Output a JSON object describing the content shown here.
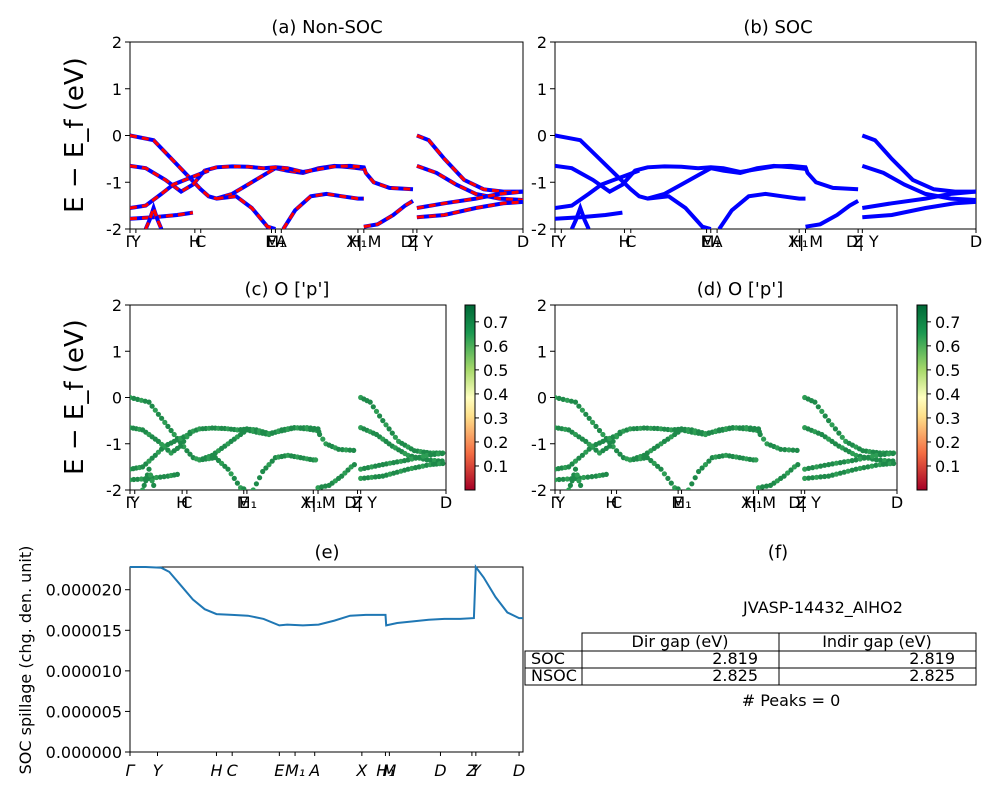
{
  "figure": {
    "id_label": "JVASP-14432_AlHO2"
  },
  "chart_data": [
    {
      "panel": "a",
      "type": "line",
      "title": "(a) Non-SOC",
      "ylabel": "E − E_f (eV)",
      "ylim": [
        -2,
        2
      ],
      "yticks": [
        -2,
        -1,
        0,
        1,
        2
      ],
      "xlim": [
        0,
        100
      ],
      "kpoint_ticks": [
        {
          "x": 0,
          "label": "Γ"
        },
        {
          "x": 1.5,
          "label": "Y"
        },
        {
          "x": 16.5,
          "label": "H"
        },
        {
          "x": 18,
          "label": "C"
        },
        {
          "x": 36,
          "label": "E"
        },
        {
          "x": 37,
          "label": "M₁"
        },
        {
          "x": 38.5,
          "label": "A"
        },
        {
          "x": 58,
          "label": "H₁"
        },
        {
          "x": 59.5,
          "label": "X| M"
        },
        {
          "x": 72,
          "label": "Z"
        },
        {
          "x": 73,
          "label": "D| Y"
        },
        {
          "x": 100,
          "label": "D"
        }
      ],
      "series": [
        {
          "color": "#0000ff",
          "points": [
            [
              0,
              0
            ],
            [
              6,
              -0.1
            ],
            [
              10,
              -0.45
            ],
            [
              14,
              -0.8
            ],
            [
              18,
              -1.15
            ],
            [
              20,
              -1.3
            ],
            [
              22,
              -1.35
            ],
            [
              26,
              -1.25
            ],
            [
              30,
              -1.05
            ],
            [
              34,
              -0.85
            ],
            [
              37,
              -0.7
            ],
            [
              40,
              -0.75
            ],
            [
              44,
              -0.8
            ],
            [
              48,
              -0.7
            ],
            [
              52,
              -0.65
            ],
            [
              56,
              -0.68
            ],
            [
              60,
              -0.72
            ]
          ]
        },
        {
          "color": "#0000ff",
          "points": [
            [
              0,
              -0.65
            ],
            [
              4,
              -0.7
            ],
            [
              9,
              -0.95
            ],
            [
              13,
              -1.2
            ],
            [
              16,
              -1.05
            ],
            [
              19,
              -0.75
            ],
            [
              22,
              -0.68
            ],
            [
              26,
              -0.66
            ],
            [
              30,
              -0.67
            ],
            [
              34,
              -0.7
            ],
            [
              37,
              -0.68
            ],
            [
              40,
              -0.7
            ],
            [
              44,
              -0.78
            ],
            [
              48,
              -0.72
            ],
            [
              52,
              -0.66
            ],
            [
              56,
              -0.65
            ],
            [
              59.5,
              -0.68
            ],
            [
              60,
              -0.8
            ],
            [
              62,
              -1.0
            ],
            [
              66,
              -1.12
            ],
            [
              72,
              -1.15
            ]
          ]
        },
        {
          "color": "#0000ff",
          "points": [
            [
              0,
              -1.55
            ],
            [
              4,
              -1.5
            ],
            [
              8,
              -1.25
            ],
            [
              11,
              -1.05
            ],
            [
              14,
              -0.95
            ],
            [
              17,
              -0.85
            ],
            [
              20,
              -0.75
            ]
          ]
        },
        {
          "color": "#0000ff",
          "points": [
            [
              0,
              -1.78
            ],
            [
              6,
              -1.75
            ],
            [
              12,
              -1.7
            ],
            [
              16,
              -1.65
            ]
          ]
        },
        {
          "color": "#0000ff",
          "points": [
            [
              22,
              -1.35
            ],
            [
              27,
              -1.3
            ],
            [
              31,
              -1.55
            ],
            [
              35,
              -1.95
            ],
            [
              37,
              -2.0
            ]
          ]
        },
        {
          "color": "#0000ff",
          "points": [
            [
              39,
              -2.0
            ],
            [
              42,
              -1.6
            ],
            [
              46,
              -1.3
            ],
            [
              50,
              -1.25
            ],
            [
              54,
              -1.3
            ],
            [
              58,
              -1.35
            ],
            [
              59.5,
              -1.35
            ]
          ]
        },
        {
          "color": "#0000ff",
          "points": [
            [
              4,
              -2.0
            ],
            [
              5,
              -1.8
            ],
            [
              6,
              -1.55
            ],
            [
              7,
              -1.8
            ],
            [
              8,
              -2.0
            ]
          ]
        },
        {
          "color": "#0000ff",
          "points": [
            [
              59.5,
              -1.95
            ],
            [
              63,
              -1.9
            ],
            [
              67,
              -1.7
            ],
            [
              70,
              -1.5
            ],
            [
              72,
              -1.4
            ]
          ]
        },
        {
          "color": "#0000ff",
          "points": [
            [
              73,
              0
            ],
            [
              76,
              -0.1
            ],
            [
              80,
              -0.5
            ],
            [
              85,
              -0.95
            ],
            [
              90,
              -1.15
            ],
            [
              95,
              -1.2
            ],
            [
              100,
              -1.2
            ]
          ]
        },
        {
          "color": "#0000ff",
          "points": [
            [
              73,
              -0.65
            ],
            [
              78,
              -0.8
            ],
            [
              83,
              -1.05
            ],
            [
              88,
              -1.25
            ],
            [
              94,
              -1.35
            ],
            [
              100,
              -1.38
            ]
          ]
        },
        {
          "color": "#0000ff",
          "points": [
            [
              73,
              -1.55
            ],
            [
              80,
              -1.45
            ],
            [
              88,
              -1.35
            ],
            [
              94,
              -1.25
            ],
            [
              100,
              -1.2
            ]
          ]
        },
        {
          "color": "#0000ff",
          "points": [
            [
              73,
              -1.75
            ],
            [
              80,
              -1.7
            ],
            [
              88,
              -1.55
            ],
            [
              95,
              -1.45
            ],
            [
              100,
              -1.42
            ]
          ]
        }
      ],
      "overlay_color": "#ff0000"
    },
    {
      "panel": "b",
      "type": "line",
      "title": "(b) SOC",
      "ylim": [
        -2,
        2
      ],
      "yticks": [
        -2,
        -1,
        0,
        1,
        2
      ],
      "xlim": [
        0,
        100
      ],
      "kpoint_ticks": [
        {
          "x": 0,
          "label": "Γ"
        },
        {
          "x": 1.5,
          "label": "Y"
        },
        {
          "x": 16.5,
          "label": "H"
        },
        {
          "x": 18,
          "label": "C"
        },
        {
          "x": 36,
          "label": "E"
        },
        {
          "x": 37,
          "label": "M₁"
        },
        {
          "x": 38.5,
          "label": "A"
        },
        {
          "x": 58,
          "label": "H₁"
        },
        {
          "x": 59.5,
          "label": "X| M"
        },
        {
          "x": 72,
          "label": "Z"
        },
        {
          "x": 73,
          "label": "D| Y"
        },
        {
          "x": 100,
          "label": "D"
        }
      ],
      "series_color": "#0000ff"
    },
    {
      "panel": "c",
      "type": "scatter",
      "title": "(c)  O ['p']",
      "ylabel": "E − E_f (eV)",
      "ylim": [
        -2,
        2
      ],
      "yticks": [
        -2,
        -1,
        0,
        1,
        2
      ],
      "colorbar_ticks": [
        0.1,
        0.2,
        0.3,
        0.4,
        0.5,
        0.6,
        0.7
      ],
      "colorbar_range": [
        0,
        0.77
      ],
      "point_color": "#1e8a4a",
      "kpoint_ticks": [
        {
          "x": 0,
          "label": "Γ"
        },
        {
          "x": 1.5,
          "label": "Y"
        },
        {
          "x": 16.5,
          "label": "H"
        },
        {
          "x": 18,
          "label": "C"
        },
        {
          "x": 36,
          "label": "E"
        },
        {
          "x": 37,
          "label": "M₁"
        },
        {
          "x": 58,
          "label": "H₁"
        },
        {
          "x": 59.5,
          "label": "X| M"
        },
        {
          "x": 72,
          "label": "Z"
        },
        {
          "x": 73,
          "label": "D| Y"
        },
        {
          "x": 100,
          "label": "D"
        }
      ]
    },
    {
      "panel": "d",
      "type": "scatter",
      "title": "(d) O ['p']",
      "ylim": [
        -2,
        2
      ],
      "yticks": [
        -2,
        -1,
        0,
        1,
        2
      ],
      "colorbar_ticks": [
        0.1,
        0.2,
        0.3,
        0.4,
        0.5,
        0.6,
        0.7
      ],
      "colorbar_range": [
        0,
        0.77
      ],
      "point_color": "#1e8a4a",
      "kpoint_ticks": [
        {
          "x": 0,
          "label": "Γ"
        },
        {
          "x": 1.5,
          "label": "Y"
        },
        {
          "x": 16.5,
          "label": "H"
        },
        {
          "x": 18,
          "label": "C"
        },
        {
          "x": 36,
          "label": "E"
        },
        {
          "x": 37,
          "label": "M₁"
        },
        {
          "x": 58,
          "label": "H₁"
        },
        {
          "x": 59.5,
          "label": "X| M"
        },
        {
          "x": 72,
          "label": "Z"
        },
        {
          "x": 73,
          "label": "D| Y"
        },
        {
          "x": 100,
          "label": "D"
        }
      ]
    },
    {
      "panel": "e",
      "type": "line",
      "title": "(e)",
      "ylabel": "SOC spillage (chg. den. unit)",
      "ylim": [
        0,
        2.28e-05
      ],
      "yticks": [
        "0.000000",
        "0.000005",
        "0.000010",
        "0.000015",
        "0.000020"
      ],
      "ytick_values": [
        0,
        5e-06,
        1e-05,
        1.5e-05,
        2e-05
      ],
      "line_color": "#1f77b4",
      "xticks": [
        {
          "x": 0,
          "label": "Γ"
        },
        {
          "x": 7,
          "label": "Y"
        },
        {
          "x": 22,
          "label": "H"
        },
        {
          "x": 26,
          "label": "C"
        },
        {
          "x": 38,
          "label": "E"
        },
        {
          "x": 42,
          "label": "M₁"
        },
        {
          "x": 47,
          "label": "A"
        },
        {
          "x": 59,
          "label": "X"
        },
        {
          "x": 65,
          "label": "H₁"
        },
        {
          "x": 66,
          "label": "M"
        },
        {
          "x": 79,
          "label": "D"
        },
        {
          "x": 87,
          "label": "Z"
        },
        {
          "x": 88,
          "label": "Y"
        },
        {
          "x": 99,
          "label": "D"
        }
      ],
      "x": [
        0,
        4,
        8,
        10,
        13,
        16,
        19,
        22,
        26,
        30,
        34,
        38,
        40,
        44,
        48,
        52,
        56,
        60,
        65,
        65.2,
        68,
        72,
        76,
        80,
        84,
        87.5,
        88,
        90,
        93,
        96,
        99,
        100
      ],
      "y": [
        2.28e-05,
        2.28e-05,
        2.27e-05,
        2.22e-05,
        2.05e-05,
        1.88e-05,
        1.76e-05,
        1.7e-05,
        1.69e-05,
        1.68e-05,
        1.64e-05,
        1.56e-05,
        1.57e-05,
        1.56e-05,
        1.57e-05,
        1.62e-05,
        1.68e-05,
        1.69e-05,
        1.69e-05,
        1.56e-05,
        1.59e-05,
        1.61e-05,
        1.63e-05,
        1.64e-05,
        1.64e-05,
        1.65e-05,
        2.28e-05,
        2.15e-05,
        1.91e-05,
        1.72e-05,
        1.65e-05,
        1.65e-05
      ]
    },
    {
      "panel": "f",
      "type": "table",
      "title": "(f)",
      "subtitle": "JVASP-14432_AlHO2",
      "columns": [
        "Dir gap (eV)",
        "Indir gap (eV)"
      ],
      "rows": [
        {
          "label": "SOC",
          "values": [
            "2.819",
            "2.819"
          ]
        },
        {
          "label": "NSOC",
          "values": [
            "2.825",
            "2.825"
          ]
        }
      ],
      "footer": "# Peaks = 0"
    }
  ]
}
